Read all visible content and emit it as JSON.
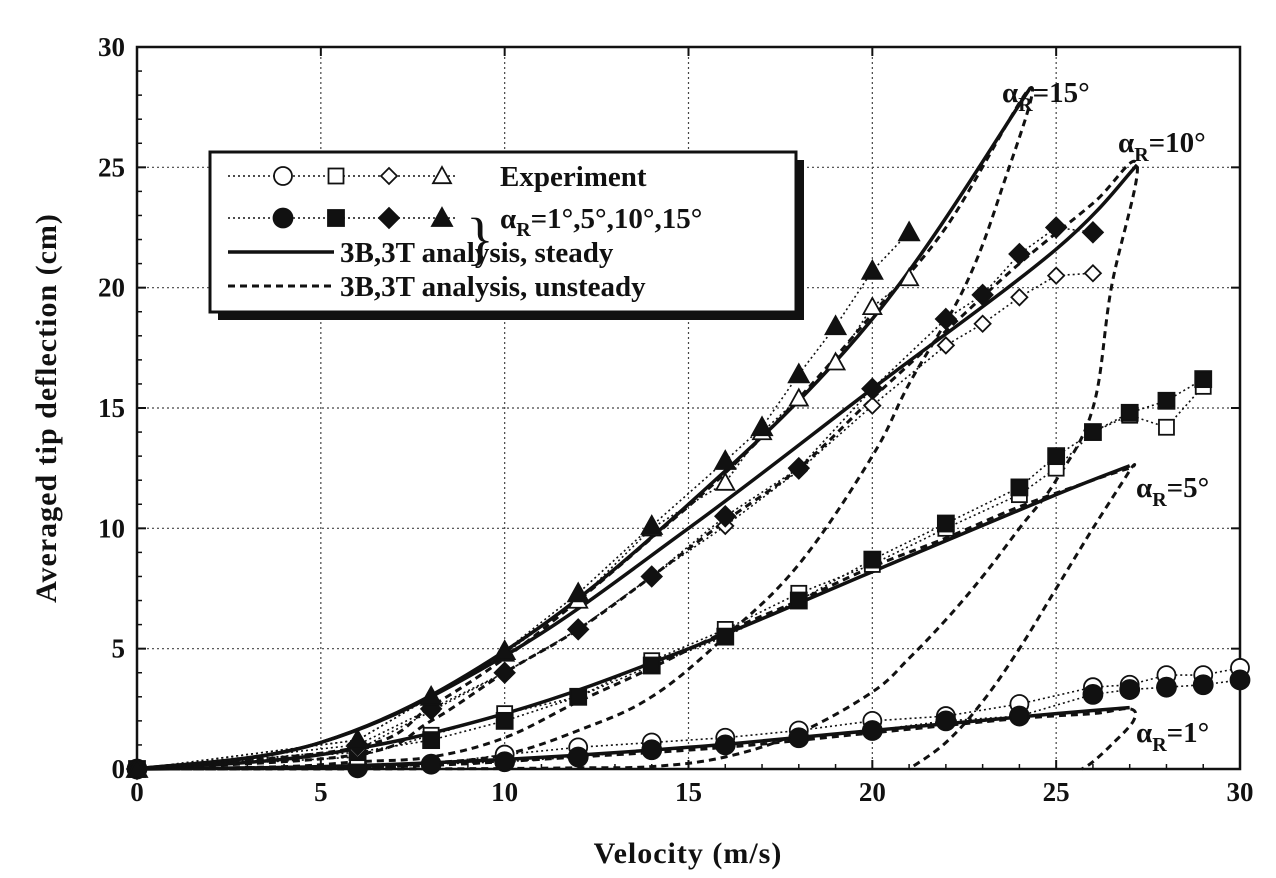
{
  "chart_data": {
    "type": "line",
    "xlabel": "Velocity  (m/s)",
    "ylabel": "Averaged  tip  deflection  (cm)",
    "xlim": [
      0,
      30
    ],
    "ylim": [
      0,
      30
    ],
    "xticks": [
      "0",
      "5",
      "10",
      "15",
      "20",
      "25",
      "30"
    ],
    "yticks": [
      "0",
      "5",
      "10",
      "15",
      "20",
      "25",
      "30"
    ],
    "grid": true,
    "legend": {
      "position": "top-left",
      "experiment_label": "Experiment",
      "alpha_label": "α",
      "alpha_sub": "R",
      "alpha_values": "=1°,5°,10°,15°",
      "steady_label": "3B,3T  analysis,  steady",
      "unsteady_label": "3B,3T  analysis,  unsteady"
    },
    "annotations": [
      {
        "alpha": "α",
        "sub": "R",
        "value": "=15°"
      },
      {
        "alpha": "α",
        "sub": "R",
        "value": "=10°"
      },
      {
        "alpha": "α",
        "sub": "R",
        "value": "=5°"
      },
      {
        "alpha": "α",
        "sub": "R",
        "value": "=1°"
      }
    ],
    "steady": [
      {
        "name": "alpha_R=1",
        "x": [
          0,
          5,
          10,
          15,
          20,
          25,
          27
        ],
        "y": [
          0,
          0.1,
          0.4,
          0.9,
          1.6,
          2.3,
          2.55
        ]
      },
      {
        "name": "alpha_R=5",
        "x": [
          0,
          5,
          10,
          15,
          20,
          25,
          27
        ],
        "y": [
          0,
          0.6,
          2.3,
          5.0,
          8.2,
          11.4,
          12.6
        ]
      },
      {
        "name": "alpha_R=10",
        "x": [
          0,
          5,
          10,
          15,
          20,
          25,
          27.2
        ],
        "y": [
          0,
          1.1,
          4.7,
          10.0,
          15.8,
          21.6,
          25.1
        ]
      },
      {
        "name": "alpha_R=15",
        "x": [
          0,
          5,
          10,
          15,
          20,
          24.3
        ],
        "y": [
          0,
          1.1,
          4.9,
          11.0,
          18.7,
          28.3
        ]
      }
    ],
    "unsteady": [
      {
        "name": "alpha_R=1",
        "x": [
          0,
          4,
          8,
          12,
          16,
          20,
          24,
          26,
          27,
          27.1,
          26.5,
          26,
          25.7
        ],
        "y": [
          0,
          0.02,
          0.15,
          0.5,
          0.9,
          1.5,
          2.1,
          2.3,
          2.5,
          2.0,
          1.0,
          0.3,
          0
        ]
      },
      {
        "name": "alpha_R=5",
        "x": [
          0,
          4,
          6,
          8,
          10,
          12,
          14,
          16,
          18,
          20,
          22,
          24,
          26,
          27,
          27,
          26,
          25,
          24,
          23,
          22,
          21
        ],
        "y": [
          0,
          0.1,
          0.3,
          0.5,
          1.3,
          2.8,
          4.2,
          5.7,
          7.0,
          8.4,
          9.6,
          10.9,
          12.0,
          12.5,
          12.4,
          10.0,
          7.5,
          5.0,
          2.8,
          1.1,
          0
        ]
      },
      {
        "name": "alpha_R=10",
        "x": [
          0,
          6,
          8,
          10,
          12,
          14,
          16,
          18,
          20,
          22,
          24,
          26,
          27.2,
          26.5,
          26,
          25,
          24,
          23,
          22,
          21,
          20,
          18,
          16,
          14,
          12,
          10,
          8,
          6,
          4,
          0
        ],
        "y": [
          0,
          0.6,
          2.0,
          4.0,
          5.8,
          8.0,
          10.3,
          12.5,
          15.4,
          18.2,
          21.0,
          23.5,
          25.1,
          20.0,
          15.0,
          12.0,
          10.0,
          8.0,
          6.2,
          4.6,
          3.2,
          1.5,
          0.5,
          0.1,
          0.05,
          0.02,
          0.01,
          0,
          0,
          0
        ]
      },
      {
        "name": "alpha_R=15",
        "x": [
          0,
          6,
          8,
          10,
          12,
          14,
          16,
          18,
          20,
          22,
          24.3,
          23.5,
          22.5,
          21,
          20,
          18,
          16,
          14,
          12,
          10,
          8,
          6,
          0
        ],
        "y": [
          0,
          0.9,
          2.6,
          4.6,
          7.0,
          9.6,
          12.3,
          15.4,
          18.9,
          22.5,
          28.3,
          24.0,
          20.0,
          16.0,
          13.0,
          8.5,
          5.5,
          3.0,
          1.6,
          0.6,
          0.25,
          0.08,
          0
        ]
      }
    ],
    "experiment": [
      {
        "name": "alpha_R=1",
        "marker": "circle",
        "fill": "open",
        "x": [
          0,
          6,
          8,
          10,
          12,
          14,
          16,
          18,
          20,
          22,
          24,
          26,
          27,
          28,
          29,
          30
        ],
        "y": [
          0,
          0.05,
          0.2,
          0.6,
          0.9,
          1.1,
          1.3,
          1.6,
          2.0,
          2.2,
          2.7,
          3.4,
          3.5,
          3.9,
          3.9,
          4.2
        ]
      },
      {
        "name": "alpha_R=1",
        "marker": "circle",
        "fill": "filled",
        "x": [
          0,
          6,
          8,
          10,
          12,
          14,
          16,
          18,
          20,
          22,
          24,
          26,
          27,
          28,
          29,
          30
        ],
        "y": [
          0,
          0.05,
          0.2,
          0.3,
          0.5,
          0.8,
          1.0,
          1.3,
          1.6,
          2.0,
          2.2,
          3.1,
          3.3,
          3.4,
          3.5,
          3.7
        ]
      },
      {
        "name": "alpha_R=5",
        "marker": "square",
        "fill": "open",
        "x": [
          0,
          6,
          8,
          10,
          12,
          14,
          16,
          18,
          20,
          22,
          24,
          25,
          26,
          27,
          28,
          29
        ],
        "y": [
          0,
          0.5,
          1.4,
          2.3,
          3.0,
          4.5,
          5.8,
          7.3,
          8.5,
          10.0,
          11.4,
          12.5,
          14.0,
          14.7,
          14.2,
          15.9
        ]
      },
      {
        "name": "alpha_R=5",
        "marker": "square",
        "fill": "filled",
        "x": [
          0,
          6,
          8,
          10,
          12,
          14,
          16,
          18,
          20,
          22,
          24,
          25,
          26,
          27,
          28,
          29
        ],
        "y": [
          0,
          0.7,
          1.2,
          2.0,
          3.0,
          4.3,
          5.5,
          7.0,
          8.7,
          10.2,
          11.7,
          13.0,
          14.0,
          14.8,
          15.3,
          16.2
        ]
      },
      {
        "name": "alpha_R=10",
        "marker": "diamond",
        "fill": "open",
        "x": [
          0,
          6,
          8,
          10,
          12,
          14,
          16,
          18,
          20,
          22,
          23,
          24,
          25,
          26
        ],
        "y": [
          0,
          0.8,
          2.4,
          4.0,
          5.8,
          8.0,
          10.1,
          12.4,
          15.1,
          17.6,
          18.5,
          19.6,
          20.5,
          20.6
        ]
      },
      {
        "name": "alpha_R=10",
        "marker": "diamond",
        "fill": "filled",
        "x": [
          0,
          6,
          8,
          10,
          12,
          14,
          16,
          18,
          20,
          22,
          23,
          24,
          25,
          26
        ],
        "y": [
          0,
          1.0,
          2.5,
          4.0,
          5.8,
          8.0,
          10.5,
          12.5,
          15.8,
          18.7,
          19.7,
          21.4,
          22.5,
          22.3
        ]
      },
      {
        "name": "alpha_R=15",
        "marker": "triangle",
        "fill": "open",
        "x": [
          0,
          6,
          8,
          10,
          12,
          14,
          16,
          17,
          18,
          19,
          20,
          21
        ],
        "y": [
          0,
          1.2,
          3.0,
          4.8,
          7.0,
          10.0,
          11.9,
          14.0,
          15.4,
          16.9,
          19.2,
          20.4
        ]
      },
      {
        "name": "alpha_R=15",
        "marker": "triangle",
        "fill": "filled",
        "x": [
          0,
          6,
          8,
          10,
          12,
          14,
          16,
          17,
          18,
          19,
          20,
          21
        ],
        "y": [
          0,
          1.2,
          3.0,
          4.9,
          7.3,
          10.1,
          12.8,
          14.2,
          16.4,
          18.4,
          20.7,
          22.3
        ]
      }
    ]
  }
}
